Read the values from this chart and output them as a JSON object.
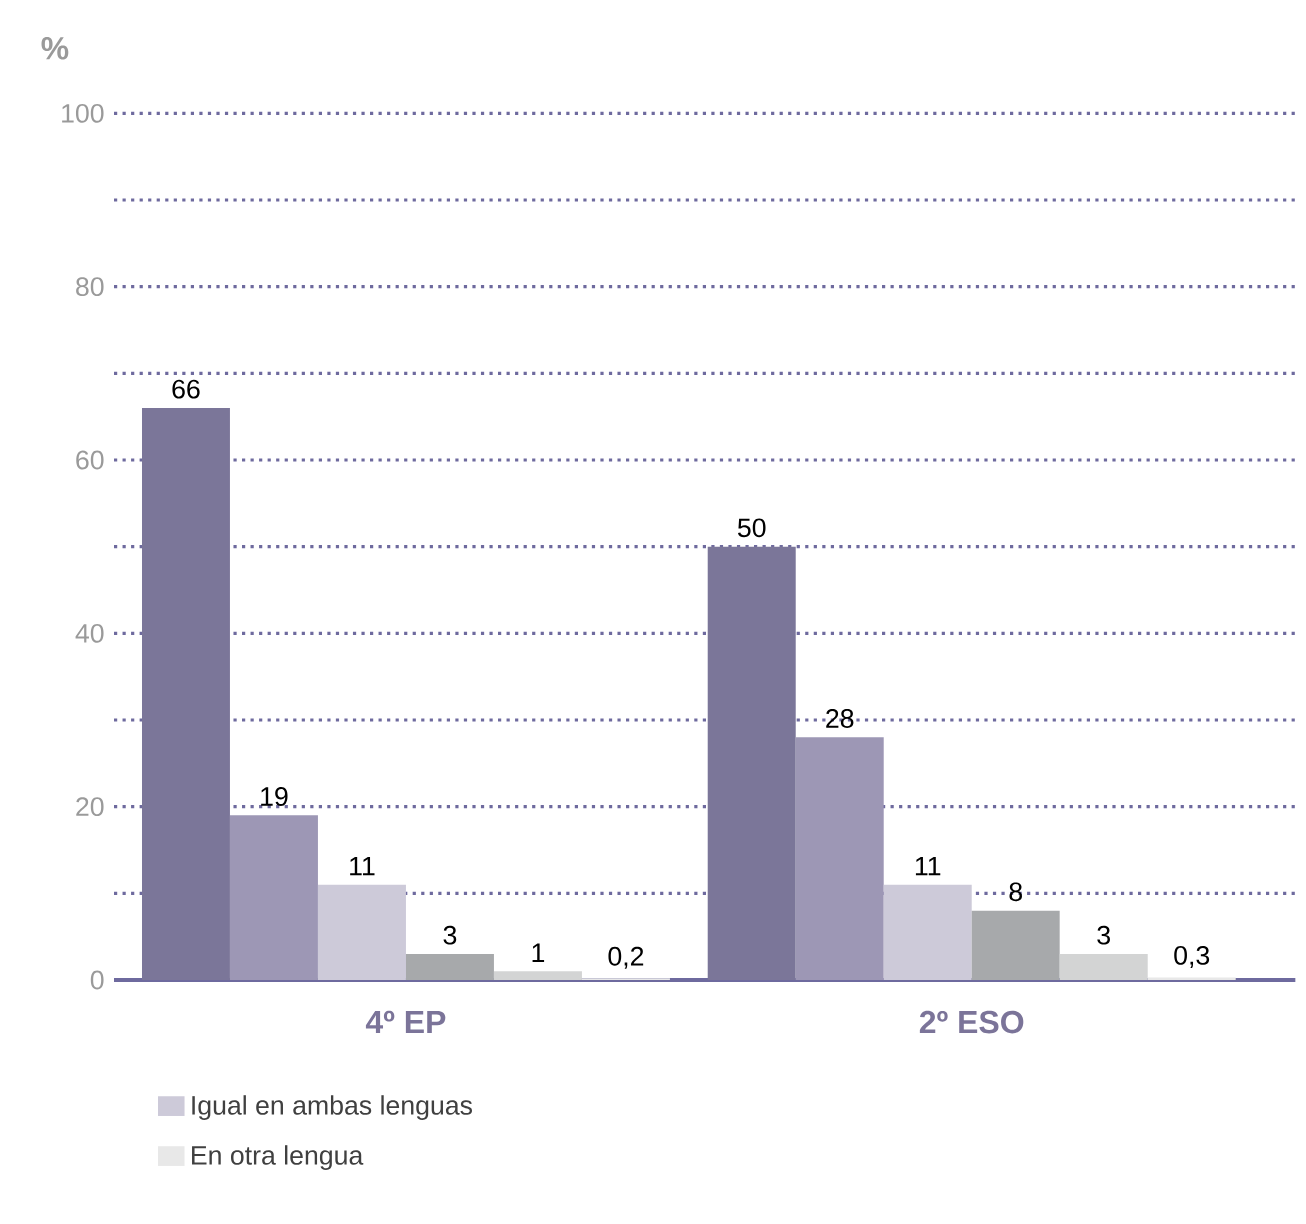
{
  "chart_data": {
    "type": "bar",
    "ylabel": "%",
    "categories": [
      "4º EP",
      "2º ESO"
    ],
    "series": [
      {
        "color": "#7b7699",
        "values": [
          66,
          50
        ],
        "value_labels": [
          "66",
          "50"
        ]
      },
      {
        "color": "#9d97b5",
        "values": [
          19,
          28
        ],
        "value_labels": [
          "19",
          "28"
        ]
      },
      {
        "name": "Igual en ambas lenguas",
        "color": "#cdcad9",
        "values": [
          11,
          11
        ],
        "value_labels": [
          "11",
          "11"
        ]
      },
      {
        "color": "#a7a9ab",
        "values": [
          3,
          8
        ],
        "value_labels": [
          "3",
          "8"
        ]
      },
      {
        "color": "#d3d4d4",
        "values": [
          1,
          3
        ],
        "value_labels": [
          "1",
          "3"
        ]
      },
      {
        "name": "En otra lengua",
        "color": "#e8e8e8",
        "values": [
          0.2,
          0.3
        ],
        "value_labels": [
          "0,2",
          "0,3"
        ]
      }
    ],
    "ylim": [
      0,
      100
    ],
    "yticks": [
      0,
      {
        "value": 10,
        "label": null
      },
      20,
      {
        "value": 30,
        "label": null
      },
      40,
      {
        "value": 50,
        "label": null
      },
      60,
      {
        "value": 70,
        "label": null
      },
      80,
      {
        "value": 90,
        "label": null
      },
      100
    ],
    "grid": "y",
    "legend": "bottom left"
  }
}
